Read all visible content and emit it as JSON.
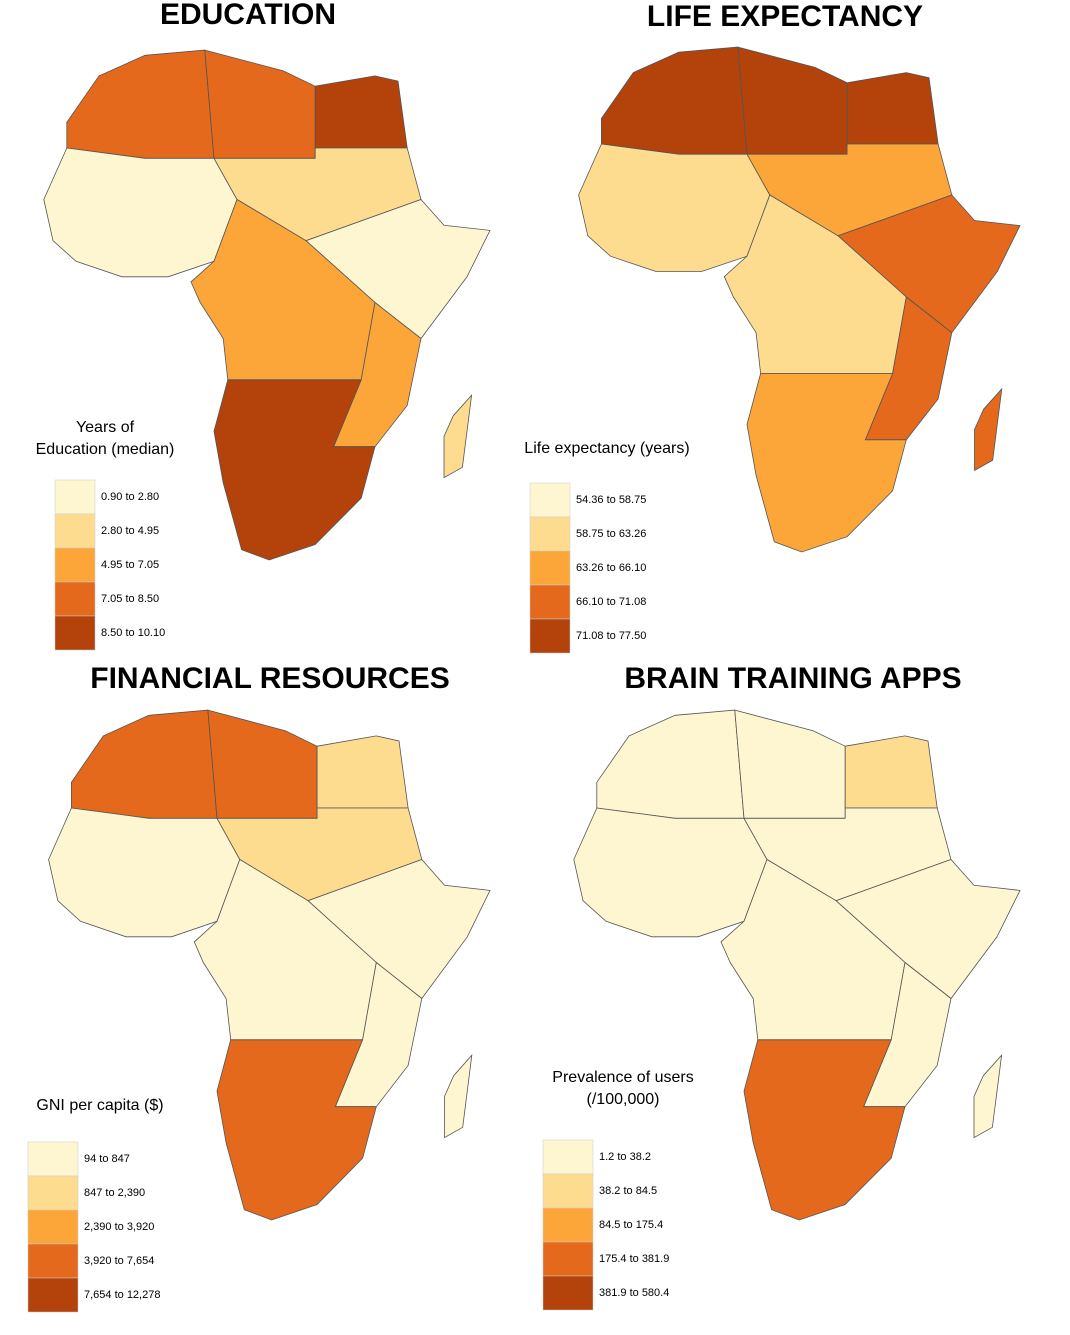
{
  "panels": [
    {
      "title": "EDUCATION",
      "legend_title": [
        "Years of",
        "Education (median)"
      ],
      "legend": [
        {
          "label": "0.90 to 2.80",
          "color": "#fef6d0"
        },
        {
          "label": "2.80 to 4.95",
          "color": "#fedc8f"
        },
        {
          "label": "4.95 to 7.05",
          "color": "#fca63a"
        },
        {
          "label": "7.05 to 8.50",
          "color": "#e4691c"
        },
        {
          "label": "8.50 to 10.10",
          "color": "#b3420b"
        }
      ]
    },
    {
      "title": "LIFE EXPECTANCY",
      "legend_title": [
        "Life expectancy (years)"
      ],
      "legend": [
        {
          "label": "54.36 to 58.75",
          "color": "#fef6d0"
        },
        {
          "label": "58.75 to 63.26",
          "color": "#fedc8f"
        },
        {
          "label": "63.26 to 66.10",
          "color": "#fca63a"
        },
        {
          "label": "66.10 to 71.08",
          "color": "#e4691c"
        },
        {
          "label": "71.08 to 77.50",
          "color": "#b3420b"
        }
      ]
    },
    {
      "title": "FINANCIAL RESOURCES",
      "legend_title": [
        "GNI per capita ($)"
      ],
      "legend": [
        {
          "label": "94 to 847",
          "color": "#fef6d0"
        },
        {
          "label": "847 to 2,390",
          "color": "#fedc8f"
        },
        {
          "label": "2,390 to 3,920",
          "color": "#fca63a"
        },
        {
          "label": "3,920 to 7,654",
          "color": "#e4691c"
        },
        {
          "label": "7,654 to 12,278",
          "color": "#b3420b"
        }
      ]
    },
    {
      "title": "BRAIN TRAINING APPS",
      "legend_title": [
        "Prevalence of users",
        "(/100,000)"
      ],
      "legend": [
        {
          "label": "1.2 to 38.2",
          "color": "#fef6d0"
        },
        {
          "label": "38.2 to 84.5",
          "color": "#fedc8f"
        },
        {
          "label": "84.5 to 175.4",
          "color": "#fca63a"
        },
        {
          "label": "175.4 to 381.9",
          "color": "#e4691c"
        },
        {
          "label": "381.9 to 580.4",
          "color": "#b3420b"
        }
      ]
    }
  ]
}
